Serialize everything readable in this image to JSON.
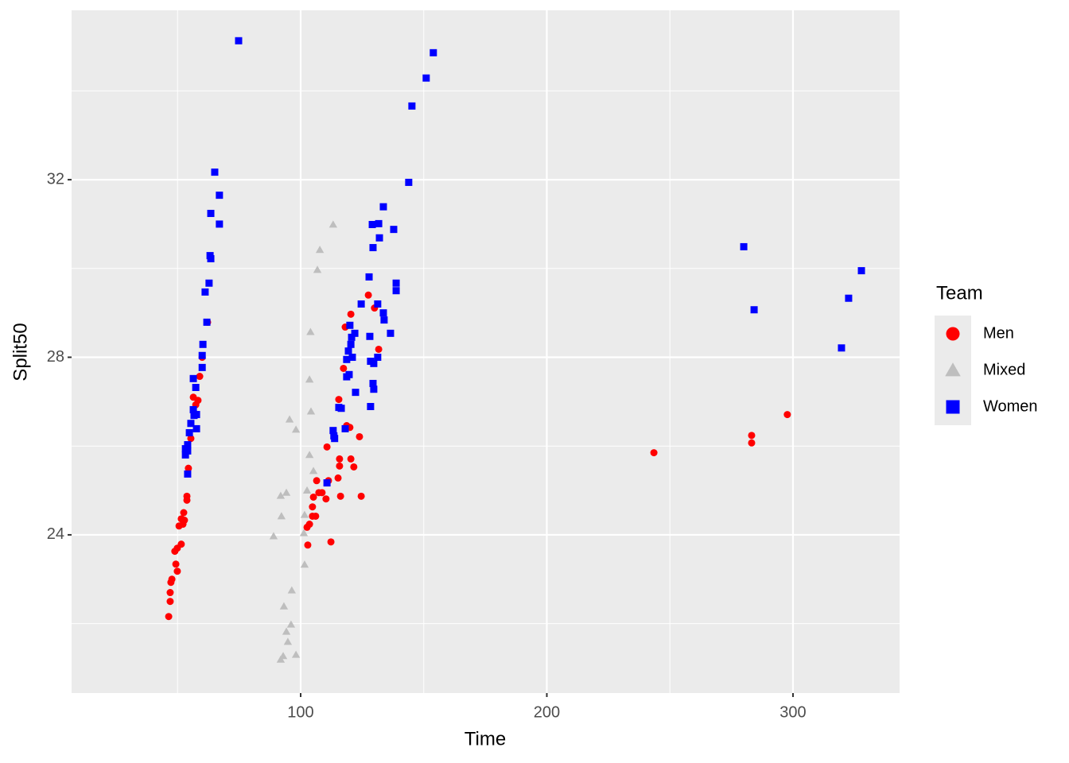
{
  "chart_data": {
    "type": "scatter",
    "x_label": "Time",
    "y_label": "Split50",
    "legend_title": "Team",
    "legend": "right",
    "xlim": [
      6.95,
      343.3
    ],
    "ylim": [
      20.436,
      35.815
    ],
    "xticks": [
      100,
      200,
      300
    ],
    "yticks": [
      24,
      28,
      32
    ],
    "x_minor_grid": [
      50,
      150,
      250
    ],
    "y_minor_grid": [
      22,
      26,
      30,
      34
    ],
    "grid": true,
    "series": [
      {
        "name": "Men",
        "color": "#ff0000",
        "shape": "circle",
        "x": [
          46.4,
          47.0,
          47.0,
          47.3,
          47.7,
          49.3,
          49.9,
          48.9,
          49.9,
          51.5,
          50.6,
          52.2,
          52.8,
          51.5,
          52.5,
          53.8,
          53.8,
          54.4,
          55.4,
          56.7,
          56.4,
          58.3,
          57.4,
          59.0,
          60.0,
          62.2,
          102.9,
          112.3,
          102.6,
          103.6,
          104.8,
          106.1,
          104.8,
          105.2,
          107.4,
          108.7,
          110.3,
          106.5,
          111.3,
          116.2,
          124.6,
          115.2,
          115.8,
          121.6,
          120.4,
          115.8,
          110.7,
          123.9,
          120.0,
          118.7,
          115.5,
          117.4,
          118.1,
          131.7,
          120.4,
          130.0,
          127.5,
          243.5,
          283.2,
          283.2,
          297.7
        ],
        "y": [
          22.16,
          22.5,
          22.7,
          22.93,
          23.0,
          23.34,
          23.18,
          23.63,
          23.7,
          23.79,
          24.2,
          24.24,
          24.33,
          24.36,
          24.5,
          24.78,
          24.87,
          25.5,
          26.17,
          26.75,
          27.1,
          27.03,
          26.93,
          27.57,
          28.0,
          28.79,
          23.77,
          23.84,
          24.17,
          24.24,
          24.42,
          24.42,
          24.63,
          24.85,
          24.95,
          24.95,
          24.81,
          25.22,
          25.22,
          24.87,
          24.87,
          25.28,
          25.55,
          25.53,
          25.71,
          25.71,
          25.98,
          26.21,
          26.42,
          26.46,
          27.05,
          27.75,
          28.68,
          28.18,
          28.97,
          29.11,
          29.4,
          25.85,
          26.24,
          26.07,
          26.71
        ]
      },
      {
        "name": "Mixed",
        "color": "#bebebe",
        "shape": "triangle",
        "x": [
          89.0,
          91.9,
          94.2,
          92.2,
          101.6,
          101.3,
          101.6,
          102.6,
          103.6,
          105.2,
          104.2,
          103.6,
          104.0,
          98.1,
          95.5,
          93.2,
          96.4,
          96.1,
          94.2,
          94.8,
          98.1,
          91.9,
          92.9,
          106.8,
          107.8,
          113.2
        ],
        "y": [
          23.97,
          24.88,
          24.95,
          24.42,
          23.33,
          24.04,
          24.45,
          25.0,
          25.8,
          25.44,
          26.78,
          27.5,
          28.57,
          26.37,
          26.6,
          22.39,
          22.75,
          21.98,
          21.82,
          21.59,
          21.3,
          21.19,
          21.27,
          29.97,
          30.42,
          30.99
        ]
      },
      {
        "name": "Women",
        "color": "#0000ff",
        "shape": "square",
        "x": [
          74.8,
          65.1,
          67.0,
          63.5,
          67.0,
          63.2,
          63.5,
          62.8,
          61.2,
          61.9,
          60.3,
          60.0,
          60.0,
          56.4,
          57.4,
          56.4,
          56.7,
          57.7,
          55.4,
          54.8,
          57.7,
          54.1,
          53.2,
          54.1,
          54.1,
          53.2,
          143.9,
          145.2,
          151.0,
          153.9,
          133.6,
          131.7,
          129.1,
          137.8,
          132.0,
          129.4,
          127.8,
          138.8,
          138.8,
          131.3,
          124.6,
          133.6,
          133.9,
          122.0,
          136.5,
          128.1,
          120.0,
          120.7,
          120.4,
          119.4,
          118.7,
          121.0,
          131.3,
          128.4,
          129.7,
          119.7,
          118.7,
          129.4,
          129.7,
          122.3,
          115.5,
          116.5,
          128.4,
          118.1,
          113.2,
          113.8,
          113.5,
          110.7,
          280.0,
          284.2,
          327.8,
          322.6,
          319.7
        ],
        "y": [
          35.13,
          32.17,
          31.65,
          31.24,
          31.0,
          30.29,
          30.22,
          29.67,
          29.47,
          28.79,
          28.29,
          28.04,
          27.77,
          27.52,
          27.32,
          26.82,
          26.69,
          26.71,
          26.51,
          26.3,
          26.39,
          26.03,
          25.94,
          25.89,
          25.37,
          25.8,
          31.94,
          33.66,
          34.29,
          34.86,
          31.39,
          31.01,
          30.99,
          30.88,
          30.69,
          30.47,
          29.81,
          29.67,
          29.5,
          29.2,
          29.2,
          29.0,
          28.84,
          28.54,
          28.54,
          28.47,
          28.72,
          28.45,
          28.29,
          28.14,
          27.95,
          28.0,
          28.0,
          27.91,
          27.86,
          27.61,
          27.56,
          27.41,
          27.28,
          27.21,
          26.87,
          26.85,
          26.89,
          26.39,
          26.35,
          26.17,
          26.23,
          25.17,
          30.49,
          29.07,
          29.95,
          29.33,
          28.21
        ]
      }
    ]
  }
}
